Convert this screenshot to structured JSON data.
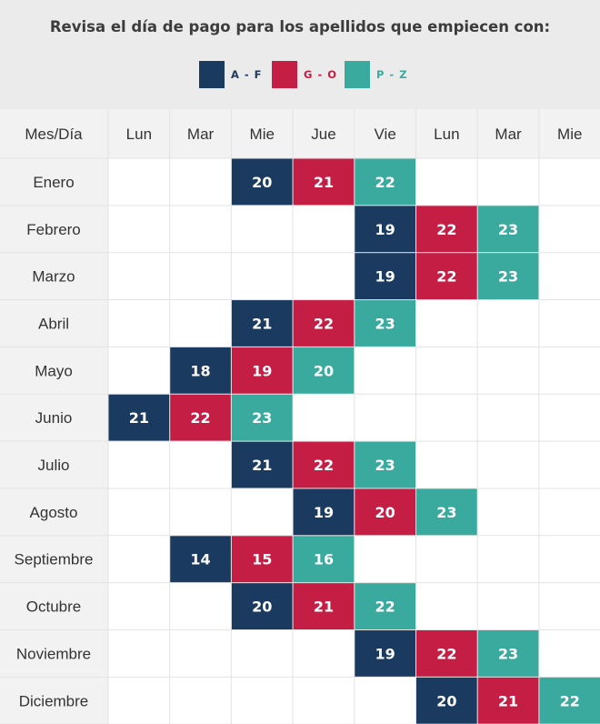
{
  "title": "Revisa el día de pago para los apellidos que empiecen con:",
  "legend": [
    {
      "label": "A - F",
      "color": "#1b3a5f"
    },
    {
      "label": "G - O",
      "color": "#c41e45"
    },
    {
      "label": "P - Z",
      "color": "#3aa99e"
    }
  ],
  "chart_data": {
    "type": "table",
    "corner_label": "Mes/Día",
    "columns": [
      "Lun",
      "Mar",
      "Mie",
      "Jue",
      "Vie",
      "Lun",
      "Mar",
      "Mie"
    ],
    "groups": [
      "A - F",
      "G - O",
      "P - Z"
    ],
    "rows": [
      {
        "month": "Enero",
        "start_col": 2,
        "days": [
          20,
          21,
          22
        ]
      },
      {
        "month": "Febrero",
        "start_col": 4,
        "days": [
          19,
          22,
          23
        ]
      },
      {
        "month": "Marzo",
        "start_col": 4,
        "days": [
          19,
          22,
          23
        ]
      },
      {
        "month": "Abril",
        "start_col": 2,
        "days": [
          21,
          22,
          23
        ]
      },
      {
        "month": "Mayo",
        "start_col": 1,
        "days": [
          18,
          19,
          20
        ]
      },
      {
        "month": "Junio",
        "start_col": 0,
        "days": [
          21,
          22,
          23
        ]
      },
      {
        "month": "Julio",
        "start_col": 2,
        "days": [
          21,
          22,
          23
        ]
      },
      {
        "month": "Agosto",
        "start_col": 3,
        "days": [
          19,
          20,
          23
        ]
      },
      {
        "month": "Septiembre",
        "start_col": 1,
        "days": [
          14,
          15,
          16
        ]
      },
      {
        "month": "Octubre",
        "start_col": 2,
        "days": [
          20,
          21,
          22
        ]
      },
      {
        "month": "Noviembre",
        "start_col": 4,
        "days": [
          19,
          22,
          23
        ]
      },
      {
        "month": "Diciembre",
        "start_col": 5,
        "days": [
          20,
          21,
          22
        ]
      }
    ]
  }
}
